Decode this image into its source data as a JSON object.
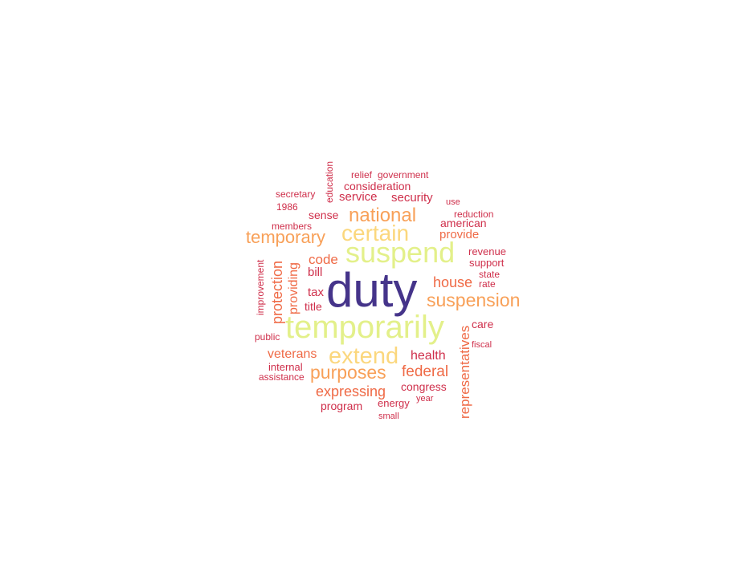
{
  "chart_data": {
    "type": "wordcloud",
    "words": [
      {
        "text": "duty",
        "color": "#45348a"
      },
      {
        "text": "temporarily",
        "color": "#e3f08a"
      },
      {
        "text": "suspend",
        "color": "#e3f08a"
      },
      {
        "text": "extend",
        "color": "#fbd77d"
      },
      {
        "text": "certain",
        "color": "#fbd77d"
      },
      {
        "text": "national",
        "color": "#f8a058"
      },
      {
        "text": "suspension",
        "color": "#f8a058"
      },
      {
        "text": "purposes",
        "color": "#f8a058"
      },
      {
        "text": "temporary",
        "color": "#f8a058"
      },
      {
        "text": "expressing",
        "color": "#ef6a46"
      },
      {
        "text": "federal",
        "color": "#ef6a46"
      },
      {
        "text": "house",
        "color": "#ef6a46"
      },
      {
        "text": "representatives",
        "color": "#ef6a46"
      },
      {
        "text": "protection",
        "color": "#ef6a46"
      },
      {
        "text": "providing",
        "color": "#ef6a46"
      },
      {
        "text": "veterans",
        "color": "#ef6a46"
      },
      {
        "text": "code",
        "color": "#ef6a46"
      },
      {
        "text": "provide",
        "color": "#ef6a46"
      },
      {
        "text": "health",
        "color": "#cf2f4b"
      },
      {
        "text": "sense",
        "color": "#cf2f4b"
      },
      {
        "text": "service",
        "color": "#cf2f4b"
      },
      {
        "text": "security",
        "color": "#cf2f4b"
      },
      {
        "text": "consideration",
        "color": "#cf2f4b"
      },
      {
        "text": "congress",
        "color": "#cf2f4b"
      },
      {
        "text": "american",
        "color": "#cf2f4b"
      },
      {
        "text": "bill",
        "color": "#cf2f4b"
      },
      {
        "text": "tax",
        "color": "#cf2f4b"
      },
      {
        "text": "program",
        "color": "#cf2f4b"
      },
      {
        "text": "care",
        "color": "#cf2f4b"
      },
      {
        "text": "title",
        "color": "#cf2f4b"
      },
      {
        "text": "revenue",
        "color": "#cf2f4b"
      },
      {
        "text": "internal",
        "color": "#cf2f4b"
      },
      {
        "text": "energy",
        "color": "#cf2f4b"
      },
      {
        "text": "reduction",
        "color": "#cf2f4b"
      },
      {
        "text": "support",
        "color": "#cf2f4b"
      },
      {
        "text": "relief",
        "color": "#cf2f4b"
      },
      {
        "text": "government",
        "color": "#cf2f4b"
      },
      {
        "text": "secretary",
        "color": "#cf2f4b"
      },
      {
        "text": "education",
        "color": "#cf2f4b"
      },
      {
        "text": "improvement",
        "color": "#cf2f4b"
      },
      {
        "text": "members",
        "color": "#cf2f4b"
      },
      {
        "text": "1986",
        "color": "#cf2f4b"
      },
      {
        "text": "state",
        "color": "#cf2f4b"
      },
      {
        "text": "rate",
        "color": "#cf2f4b"
      },
      {
        "text": "public",
        "color": "#cf2f4b"
      },
      {
        "text": "assistance",
        "color": "#cf2f4b"
      },
      {
        "text": "use",
        "color": "#cf2f4b"
      },
      {
        "text": "fiscal",
        "color": "#cf2f4b"
      },
      {
        "text": "year",
        "color": "#cf2f4b"
      },
      {
        "text": "small",
        "color": "#cf2f4b"
      }
    ]
  }
}
